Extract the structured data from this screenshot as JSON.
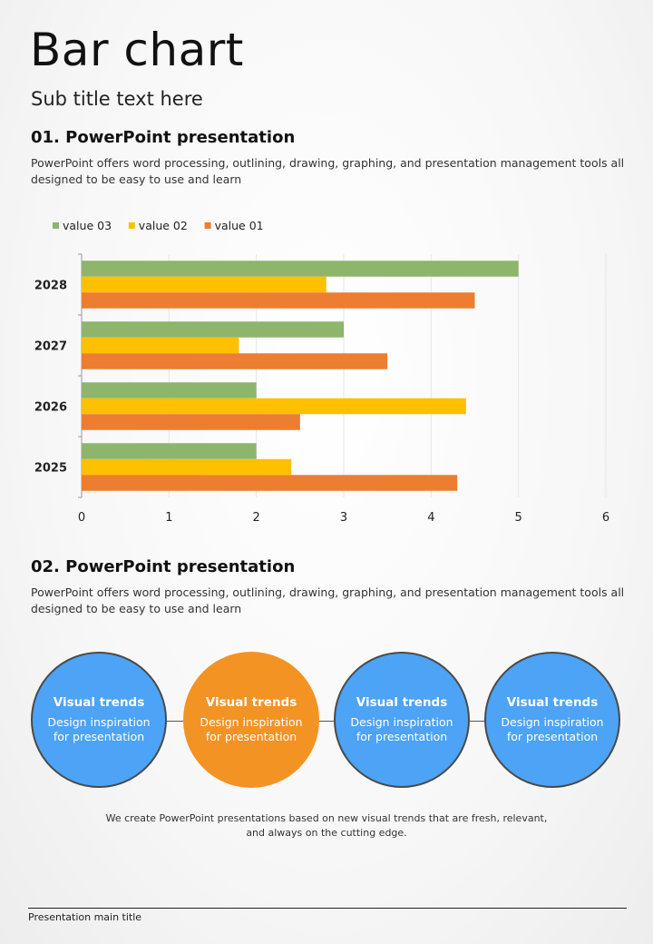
{
  "page": {
    "title": "Bar chart",
    "subtitle": "Sub title text here",
    "footer": "Presentation main title"
  },
  "section1": {
    "heading": "01. PowerPoint presentation",
    "text": "PowerPoint offers word processing, outlining, drawing, graphing, and presentation management tools all designed to be easy to use and learn"
  },
  "section2": {
    "heading": "02. PowerPoint presentation",
    "text": "PowerPoint offers word processing, outlining, drawing, graphing, and presentation management tools all designed to be easy to use and learn"
  },
  "chart_data": {
    "type": "bar",
    "orientation": "horizontal",
    "title": "",
    "xlabel": "",
    "ylabel": "",
    "categories": [
      "2025",
      "2026",
      "2027",
      "2028"
    ],
    "series": [
      {
        "name": "value 03",
        "color": "#8db56b",
        "values": [
          2,
          2,
          3,
          5
        ]
      },
      {
        "name": "value 02",
        "color": "#ffc000",
        "values": [
          2.4,
          4.4,
          1.8,
          2.8
        ]
      },
      {
        "name": "value 01",
        "color": "#ed7d31",
        "values": [
          4.3,
          2.5,
          3.5,
          4.5
        ]
      }
    ],
    "xlim": [
      0,
      6
    ],
    "xticks": [
      "0",
      "1",
      "2",
      "3",
      "4",
      "5",
      "6"
    ],
    "grid": true,
    "legend": "top-left"
  },
  "circles": [
    {
      "title": "Visual trends",
      "desc": "Design inspiration for presentation",
      "color": "blue"
    },
    {
      "title": "Visual trends",
      "desc": "Design inspiration for presentation",
      "color": "orange"
    },
    {
      "title": "Visual trends",
      "desc": "Design inspiration for presentation",
      "color": "blue"
    },
    {
      "title": "Visual trends",
      "desc": "Design inspiration for presentation",
      "color": "blue"
    }
  ],
  "note": "We create PowerPoint presentations based on new visual trends that are fresh, relevant, and always on the cutting edge."
}
